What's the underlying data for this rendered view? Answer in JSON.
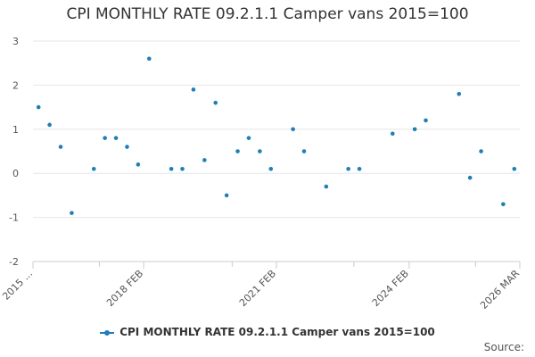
{
  "chart_data": {
    "type": "scatter",
    "title": "CPI MONTHLY RATE 09.2.1.1 Camper vans 2015=100",
    "xlabel": "",
    "ylabel": "",
    "ylim": [
      -2,
      3
    ],
    "yticks": [
      "3",
      "2",
      "1",
      "0",
      "-1",
      "-2"
    ],
    "ytick_values": [
      3,
      2,
      1,
      0,
      -1,
      -2
    ],
    "x_range": [
      0,
      44
    ],
    "x_tick_labels": [
      {
        "label": "2015 ...",
        "x": 0
      },
      {
        "label": "2018 FEB",
        "x": 10
      },
      {
        "label": "2021 FEB",
        "x": 22
      },
      {
        "label": "2024 FEB",
        "x": 34
      },
      {
        "label": "2026 MAR",
        "x": 44
      }
    ],
    "x_minor_ticks": [
      6,
      18,
      29,
      40
    ],
    "series": [
      {
        "name": "CPI MONTHLY RATE 09.2.1.1 Camper vans 2015=100",
        "color": "#1f7fb4",
        "points": [
          {
            "x": 0.5,
            "y": 1.5
          },
          {
            "x": 1.5,
            "y": 1.1
          },
          {
            "x": 2.5,
            "y": 0.6
          },
          {
            "x": 3.5,
            "y": -0.9
          },
          {
            "x": 5.5,
            "y": 0.1
          },
          {
            "x": 6.5,
            "y": 0.8
          },
          {
            "x": 7.5,
            "y": 0.8
          },
          {
            "x": 8.5,
            "y": 0.6
          },
          {
            "x": 9.5,
            "y": 0.2
          },
          {
            "x": 10.5,
            "y": 2.6
          },
          {
            "x": 12.5,
            "y": 0.1
          },
          {
            "x": 13.5,
            "y": 0.1
          },
          {
            "x": 14.5,
            "y": 1.9
          },
          {
            "x": 15.5,
            "y": 0.3
          },
          {
            "x": 16.5,
            "y": 1.6
          },
          {
            "x": 17.5,
            "y": -0.5
          },
          {
            "x": 18.5,
            "y": 0.5
          },
          {
            "x": 19.5,
            "y": 0.8
          },
          {
            "x": 20.5,
            "y": 0.5
          },
          {
            "x": 21.5,
            "y": 0.1
          },
          {
            "x": 23.5,
            "y": 1.0
          },
          {
            "x": 24.5,
            "y": 0.5
          },
          {
            "x": 26.5,
            "y": -0.3
          },
          {
            "x": 28.5,
            "y": 0.1
          },
          {
            "x": 29.5,
            "y": 0.1
          },
          {
            "x": 32.5,
            "y": 0.9
          },
          {
            "x": 34.5,
            "y": 1.0
          },
          {
            "x": 35.5,
            "y": 1.2
          },
          {
            "x": 38.5,
            "y": 1.8
          },
          {
            "x": 39.5,
            "y": -0.1
          },
          {
            "x": 40.5,
            "y": 0.5
          },
          {
            "x": 42.5,
            "y": -0.7
          },
          {
            "x": 43.5,
            "y": 0.1
          }
        ]
      }
    ],
    "legend": "bottom-center",
    "source_label": "Source:"
  }
}
